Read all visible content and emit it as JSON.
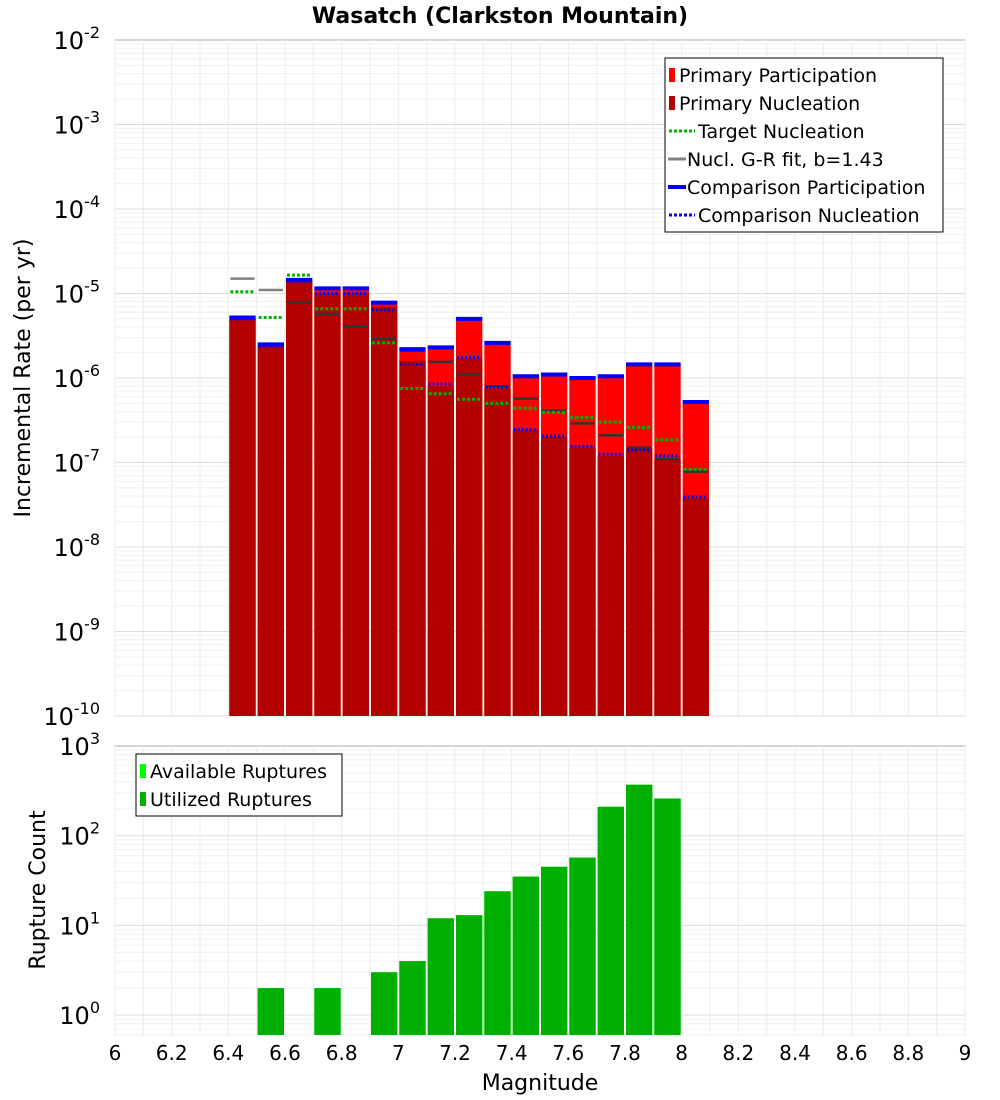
{
  "title": "Wasatch (Clarkston Mountain)",
  "xlabel": "Magnitude",
  "x_ticks": [
    "6",
    "6.2",
    "6.4",
    "6.6",
    "6.8",
    "7",
    "7.2",
    "7.4",
    "7.6",
    "7.8",
    "8",
    "8.2",
    "8.4",
    "8.6",
    "8.8",
    "9"
  ],
  "colors": {
    "primary_participation": "#ff0000",
    "primary_nucleation": "#b30000",
    "target_nucleation": "#00b300",
    "gr_fit": "#808080",
    "gr_fit_primary": "#333333",
    "comparison": "#0000ff",
    "available": "#00ff00",
    "utilized": "#00b000"
  },
  "chart_data": [
    {
      "type": "bar",
      "title": "Wasatch (Clarkston Mountain)",
      "xlabel": "",
      "ylabel": "Incremental Rate (per yr)",
      "xlim": [
        6,
        9
      ],
      "ylim": [
        1e-10,
        0.01
      ],
      "yscale": "log",
      "y_ticks": [
        {
          "base": "10",
          "exp": "-2"
        },
        {
          "base": "10",
          "exp": "-3"
        },
        {
          "base": "10",
          "exp": "-4"
        },
        {
          "base": "10",
          "exp": "-5"
        },
        {
          "base": "10",
          "exp": "-6"
        },
        {
          "base": "10",
          "exp": "-7"
        },
        {
          "base": "10",
          "exp": "-8"
        },
        {
          "base": "10",
          "exp": "-9"
        },
        {
          "base": "10",
          "exp": "-10"
        }
      ],
      "grid": true,
      "legend_position": "top-right",
      "bin_width": 0.1,
      "legend": [
        {
          "label": "Primary Participation",
          "style": "box",
          "color": "#ff0000"
        },
        {
          "label": "Primary Nucleation",
          "style": "box",
          "color": "#b30000"
        },
        {
          "label": " Target Nucleation",
          "style": "dotted",
          "color": "#00b300"
        },
        {
          "label": "Nucl. G-R fit, b=1.43",
          "style": "solid",
          "color": "#808080"
        },
        {
          "label": "Comparison Participation",
          "style": "thick",
          "color": "#0000ff"
        },
        {
          "label": " Comparison Nucleation",
          "style": "dotted",
          "color": "#0000ff"
        }
      ],
      "x": [
        6.45,
        6.55,
        6.65,
        6.75,
        6.85,
        6.95,
        7.05,
        7.15,
        7.25,
        7.35,
        7.45,
        7.55,
        7.65,
        7.75,
        7.85,
        7.95,
        8.05
      ],
      "series": [
        {
          "name": "Primary Participation",
          "values": [
            5e-06,
            2.4e-06,
            1.4e-05,
            1.1e-05,
            1.1e-05,
            7.5e-06,
            2.1e-06,
            2.2e-06,
            4.8e-06,
            2.5e-06,
            1e-06,
            1.05e-06,
            9.5e-07,
            1e-06,
            1.4e-06,
            1.4e-06,
            5e-07
          ]
        },
        {
          "name": "Primary Nucleation",
          "values": [
            5e-06,
            2.4e-06,
            1.4e-05,
            1e-05,
            1e-05,
            7e-06,
            1.6e-06,
            8e-07,
            1.7e-06,
            7.5e-07,
            2.4e-07,
            2e-07,
            1.5e-07,
            1.2e-07,
            1.5e-07,
            1.1e-07,
            3.8e-08
          ]
        },
        {
          "name": "Target Nucleation",
          "values": [
            1.05e-05,
            5.2e-06,
            1.65e-05,
            6.6e-06,
            6.6e-06,
            2.6e-06,
            7.5e-07,
            6.5e-07,
            5.6e-07,
            5e-07,
            4.4e-07,
            3.9e-07,
            3.4e-07,
            3e-07,
            2.6e-07,
            1.85e-07,
            8.3e-08
          ]
        },
        {
          "name": "Nucl. G-R fit, b=1.43",
          "values": [
            1.5e-05,
            1.1e-05,
            7.8e-06,
            5.7e-06,
            4.1e-06,
            2.9e-06,
            2.1e-06,
            1.55e-06,
            1.1e-06,
            8e-07,
            5.7e-07,
            4.1e-07,
            2.9e-07,
            2.1e-07,
            1.5e-07,
            1.1e-07,
            7.8e-08
          ]
        },
        {
          "name": "Comparison Participation",
          "values": [
            5.2e-06,
            2.5e-06,
            1.45e-05,
            1.15e-05,
            1.15e-05,
            7.8e-06,
            2.2e-06,
            2.3e-06,
            5e-06,
            2.6e-06,
            1.05e-06,
            1.1e-06,
            1e-06,
            1.05e-06,
            1.45e-06,
            1.45e-06,
            5.2e-07
          ]
        },
        {
          "name": "Comparison Nucleation",
          "values": [
            5e-06,
            2.4e-06,
            1.4e-05,
            1e-05,
            1e-05,
            6.4e-06,
            1.45e-06,
            8.5e-07,
            1.75e-06,
            7.8e-07,
            2.45e-07,
            2.05e-07,
            1.55e-07,
            1.25e-07,
            1.4e-07,
            1.2e-07,
            3.9e-08
          ]
        }
      ]
    },
    {
      "type": "bar",
      "title": "",
      "xlabel": "Magnitude",
      "ylabel": "Rupture Count",
      "xlim": [
        6,
        9
      ],
      "ylim": [
        0.6,
        1000
      ],
      "yscale": "log",
      "y_ticks": [
        {
          "base": "10",
          "exp": "3"
        },
        {
          "base": "10",
          "exp": "2"
        },
        {
          "base": "10",
          "exp": "1"
        },
        {
          "base": "10",
          "exp": "0"
        }
      ],
      "grid": true,
      "legend_position": "top-left",
      "bin_width": 0.1,
      "legend": [
        {
          "label": "Available Ruptures",
          "style": "box",
          "color": "#00ff00"
        },
        {
          "label": "Utilized Ruptures",
          "style": "box",
          "color": "#00b000"
        }
      ],
      "x": [
        6.55,
        6.75,
        6.95,
        7.05,
        7.15,
        7.25,
        7.35,
        7.45,
        7.55,
        7.65,
        7.75,
        7.85,
        7.95
      ],
      "series": [
        {
          "name": "Available Ruptures",
          "values": [
            2,
            2,
            3,
            4,
            12,
            13,
            24,
            35,
            45,
            57,
            210,
            370,
            260
          ]
        },
        {
          "name": "Utilized Ruptures",
          "values": [
            2,
            2,
            3,
            4,
            12,
            13,
            24,
            35,
            45,
            57,
            210,
            370,
            260
          ]
        }
      ]
    }
  ]
}
